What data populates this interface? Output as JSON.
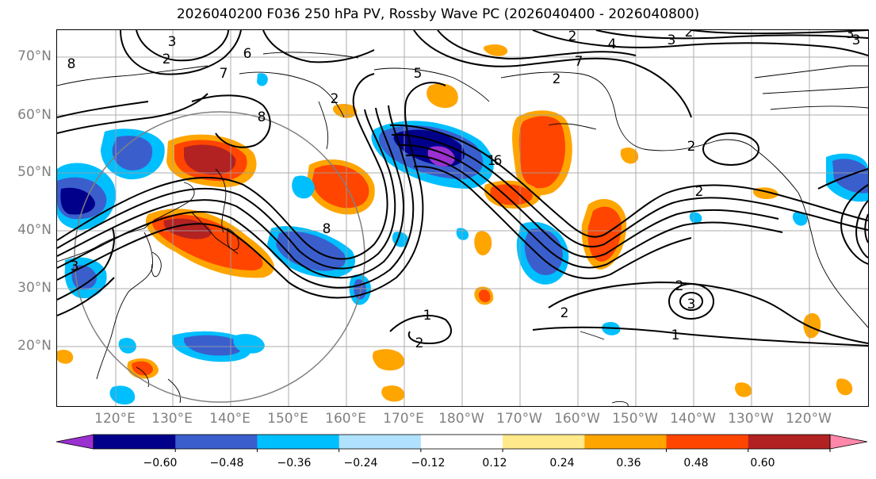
{
  "title": "2026040200 F036 250 hPa PV, Rossby Wave PC (2026040400 - 2026040800)",
  "lat_labels": [
    "70°N",
    "60°N",
    "50°N",
    "40°N",
    "30°N",
    "20°N"
  ],
  "lon_labels": [
    "120°E",
    "130°E",
    "140°E",
    "150°E",
    "160°E",
    "170°E",
    "180°W",
    "170°W",
    "160°W",
    "150°W",
    "140°W",
    "130°W",
    "120°W"
  ],
  "colorbar": {
    "tick_labels": [
      "−0.60",
      "−0.48",
      "−0.36",
      "−0.24",
      "−0.12",
      "0.12",
      "0.24",
      "0.36",
      "0.48",
      "0.60"
    ],
    "colors": [
      "#9b30d0",
      "#00008b",
      "#3a5fcd",
      "#00bfff",
      "#b0e2ff",
      "#ffffff",
      "#ffe98a",
      "#ffa500",
      "#ff4500",
      "#b22222",
      "#ff88aa"
    ]
  },
  "contour_labels": [
    "3",
    "2",
    "6",
    "7",
    "8",
    "2",
    "5",
    "2",
    "3",
    "2",
    "4",
    "3",
    "2",
    "7",
    "1",
    "6",
    "8",
    "2",
    "3",
    "2",
    "2",
    "3",
    "1",
    "1",
    "2",
    "3",
    "2",
    "8"
  ],
  "colors": {
    "land_outline": "#000000",
    "grid": "#a0a0a0",
    "contour": "#000000",
    "circle": "#808080"
  }
}
